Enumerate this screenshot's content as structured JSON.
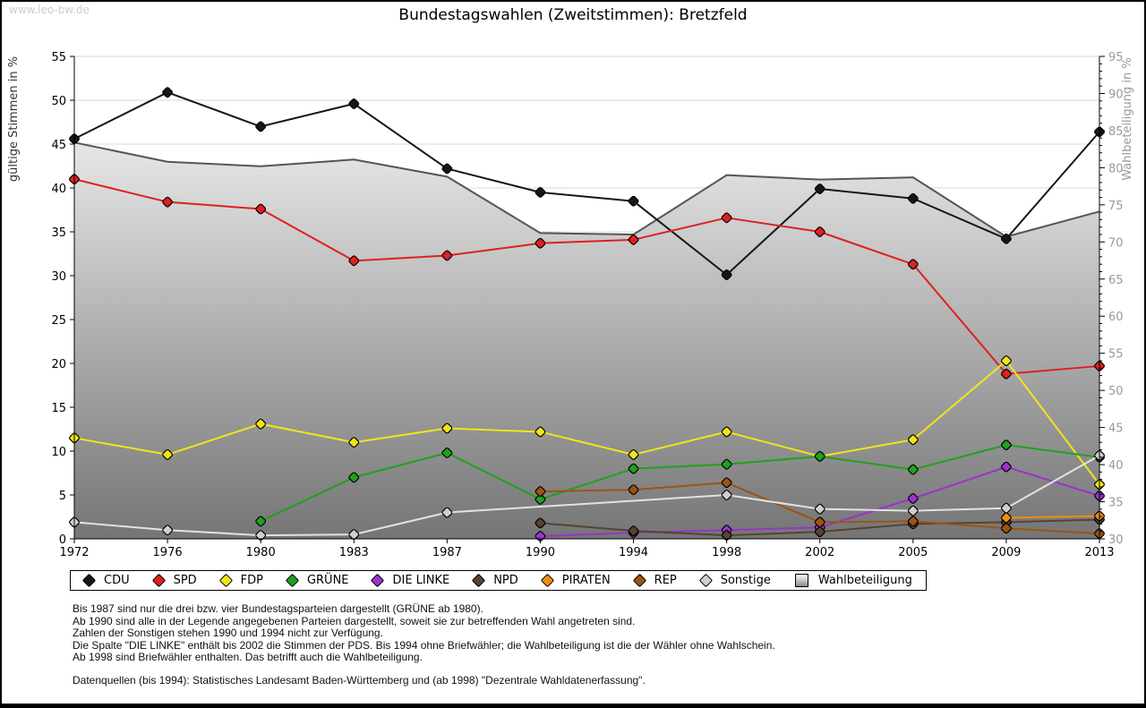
{
  "watermark": "www.leo-bw.de",
  "title": "Bundestagswahlen (Zweitstimmen): Bretzfeld",
  "chart_data": {
    "type": "line",
    "x": [
      1972,
      1976,
      1980,
      1983,
      1987,
      1990,
      1994,
      1998,
      2002,
      2005,
      2009,
      2013
    ],
    "left_axis": {
      "label": "gültige Stimmen in %",
      "min": 0,
      "max": 55,
      "step": 5
    },
    "right_axis": {
      "label": "Wahlbeteiligung in %",
      "min": 30,
      "max": 95,
      "step": 5
    },
    "grid": true,
    "legend_position": "bottom",
    "colors": {
      "grid": "#d9d9d9",
      "axis": "#000000",
      "right_axis_text": "#999999",
      "area_stroke": "#555555",
      "area_gradient_top": "#ffffff",
      "area_gradient_bottom": "#757575"
    },
    "series": [
      {
        "name": "CDU",
        "axis": "left",
        "color": "#161616",
        "values": [
          45.6,
          50.9,
          47.0,
          49.6,
          42.2,
          39.5,
          38.5,
          30.1,
          39.9,
          38.8,
          34.2,
          46.4
        ]
      },
      {
        "name": "SPD",
        "axis": "left",
        "color": "#dd2020",
        "values": [
          41.0,
          38.4,
          37.6,
          31.7,
          32.3,
          33.7,
          34.1,
          36.6,
          35.0,
          31.3,
          18.8,
          19.7
        ]
      },
      {
        "name": "FDP",
        "axis": "left",
        "color": "#f2e418",
        "values": [
          11.5,
          9.6,
          13.1,
          11.0,
          12.6,
          12.2,
          9.6,
          12.2,
          9.4,
          11.3,
          20.3,
          6.2
        ]
      },
      {
        "name": "GRÜNE",
        "axis": "left",
        "color": "#1fa11f",
        "values": [
          null,
          null,
          2.0,
          7.0,
          9.8,
          4.5,
          8.0,
          8.5,
          9.4,
          7.9,
          10.7,
          9.3
        ]
      },
      {
        "name": "DIE LINKE",
        "axis": "left",
        "color": "#9933cc",
        "values": [
          null,
          null,
          null,
          null,
          null,
          0.3,
          0.7,
          1.0,
          1.3,
          4.6,
          8.2,
          4.9
        ]
      },
      {
        "name": "NPD",
        "axis": "left",
        "color": "#564334",
        "values": [
          null,
          null,
          null,
          null,
          null,
          1.8,
          0.9,
          0.4,
          0.8,
          1.7,
          1.9,
          2.2
        ]
      },
      {
        "name": "PIRATEN",
        "axis": "left",
        "color": "#ef8d15",
        "values": [
          null,
          null,
          null,
          null,
          null,
          null,
          null,
          null,
          null,
          null,
          2.4,
          2.6
        ]
      },
      {
        "name": "REP",
        "axis": "left",
        "color": "#9c5413",
        "values": [
          null,
          null,
          null,
          null,
          null,
          5.4,
          5.6,
          6.4,
          1.9,
          2.0,
          1.2,
          0.6
        ]
      },
      {
        "name": "Sonstige",
        "axis": "left",
        "color": "#e2e2e2",
        "marker_fill": "#cfcfcf",
        "values": [
          1.9,
          1.0,
          0.4,
          0.5,
          3.0,
          null,
          null,
          5.0,
          3.4,
          3.2,
          3.5,
          9.5
        ]
      },
      {
        "name": "Wahlbeteiligung",
        "axis": "right",
        "color": "#555555",
        "type": "area",
        "values": [
          83.4,
          80.8,
          80.2,
          81.1,
          78.8,
          71.2,
          71.0,
          79.0,
          78.4,
          78.7,
          70.7,
          74.1
        ]
      }
    ]
  },
  "footnotes": [
    "Bis 1987 sind nur die drei bzw. vier Bundestagsparteien dargestellt (GRÜNE ab 1980).",
    "Ab 1990 sind alle in der Legende angegebenen Parteien dargestellt, soweit sie zur betreffenden Wahl angetreten sind.",
    "Zahlen der Sonstigen stehen 1990 und 1994 nicht zur Verfügung.",
    "Die Spalte \"DIE LINKE\" enthält bis 2002 die Stimmen der PDS. Bis 1994 ohne Briefwähler; die Wahlbeteiligung ist die der Wähler ohne Wahlschein.",
    "Ab 1998 sind Briefwähler enthalten. Das betrifft auch die Wahlbeteiligung."
  ],
  "datasource": "Datenquellen (bis 1994): Statistisches Landesamt Baden-Württemberg und (ab 1998) \"Dezentrale Wahldatenerfassung\"."
}
